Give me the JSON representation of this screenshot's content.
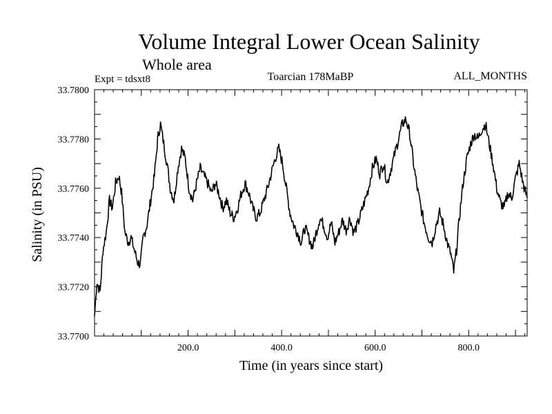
{
  "chart_data": {
    "type": "line",
    "title": "Volume Integral Lower Ocean Salinity",
    "subtitle": "Whole area",
    "left_label": "Expt = tdsxt8",
    "center_label": "Toarcian 178MaBP",
    "right_label": "ALL_MONTHS",
    "xlabel": "Time (in years since start)",
    "ylabel": "Salinity (in PSU)",
    "xlim": [
      0,
      925
    ],
    "ylim": [
      33.77,
      33.78
    ],
    "x_ticks": [
      200,
      400,
      600,
      800
    ],
    "x_tick_labels": [
      "200.0",
      "400.0",
      "600.0",
      "800.0"
    ],
    "y_ticks": [
      33.77,
      33.772,
      33.774,
      33.776,
      33.778,
      33.78
    ],
    "y_tick_labels": [
      "33.7700",
      "33.7720",
      "33.7740",
      "33.7760",
      "33.7780",
      "33.7800"
    ],
    "series": [
      {
        "name": "Salinity",
        "x": [
          0,
          5,
          12,
          18,
          25,
          32,
          38,
          45,
          52,
          58,
          65,
          72,
          78,
          85,
          92,
          98,
          104,
          112,
          120,
          128,
          135,
          141,
          148,
          155,
          162,
          170,
          178,
          186,
          194,
          202,
          210,
          218,
          226,
          234,
          242,
          250,
          258,
          266,
          274,
          282,
          290,
          298,
          306,
          314,
          322,
          330,
          338,
          346,
          354,
          362,
          370,
          378,
          386,
          394,
          402,
          410,
          418,
          426,
          434,
          442,
          450,
          458,
          466,
          474,
          482,
          490,
          498,
          506,
          514,
          522,
          530,
          538,
          546,
          554,
          562,
          570,
          578,
          586,
          594,
          602,
          610,
          618,
          626,
          634,
          642,
          650,
          658,
          666,
          674,
          682,
          690,
          698,
          706,
          714,
          722,
          730,
          738,
          746,
          754,
          762,
          768,
          774,
          780,
          788,
          796,
          804,
          812,
          820,
          828,
          836,
          844,
          852,
          860,
          868,
          876,
          884,
          892,
          900,
          908,
          916,
          925
        ],
        "values": [
          33.7708,
          33.7722,
          33.7718,
          33.7735,
          33.7742,
          33.7755,
          33.7752,
          33.7762,
          33.7765,
          33.7758,
          33.7742,
          33.7738,
          33.774,
          33.7735,
          33.773,
          33.7729,
          33.774,
          33.7745,
          33.7755,
          33.7765,
          33.778,
          33.7786,
          33.7778,
          33.777,
          33.776,
          33.7755,
          33.7768,
          33.7776,
          33.7772,
          33.776,
          33.7755,
          33.7762,
          33.7768,
          33.7765,
          33.7762,
          33.7758,
          33.7762,
          33.7758,
          33.7752,
          33.7755,
          33.775,
          33.7748,
          33.7752,
          33.7758,
          33.7762,
          33.7758,
          33.7752,
          33.7748,
          33.775,
          33.7755,
          33.776,
          33.7766,
          33.7772,
          33.7776,
          33.777,
          33.776,
          33.775,
          33.7745,
          33.7742,
          33.7738,
          33.7744,
          33.774,
          33.7736,
          33.7742,
          33.7748,
          33.7745,
          33.774,
          33.7746,
          33.7738,
          33.7742,
          33.7747,
          33.7743,
          33.7748,
          33.7742,
          33.7745,
          33.775,
          33.7755,
          33.776,
          33.7768,
          33.7772,
          33.7766,
          33.777,
          33.7762,
          33.7768,
          33.7774,
          33.778,
          33.7786,
          33.7788,
          33.7782,
          33.777,
          33.776,
          33.7752,
          33.7745,
          33.774,
          33.7738,
          33.7745,
          33.775,
          33.7745,
          33.7738,
          33.7733,
          33.7726,
          33.7735,
          33.7748,
          33.7762,
          33.7772,
          33.7778,
          33.7782,
          33.778,
          33.7784,
          33.7786,
          33.7778,
          33.777,
          33.776,
          33.7754,
          33.7752,
          33.7758,
          33.7756,
          33.7764,
          33.777,
          33.7762,
          33.7756
        ]
      }
    ]
  }
}
